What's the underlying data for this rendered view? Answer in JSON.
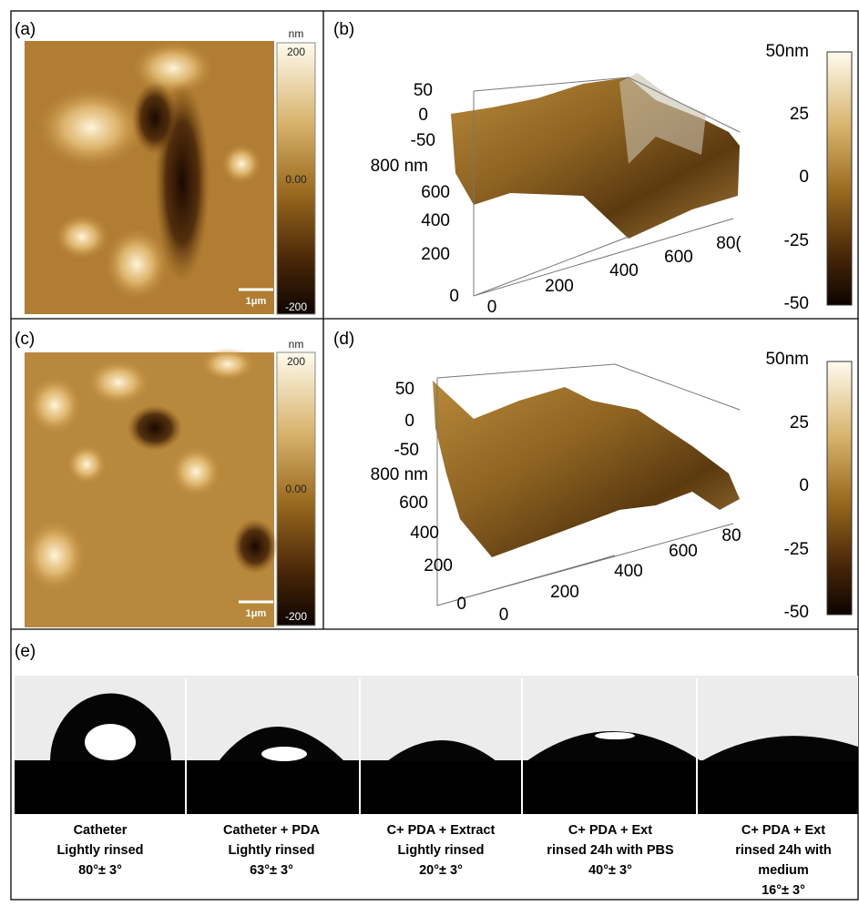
{
  "panels": [
    {
      "label": "(a)",
      "colorbar": {
        "unit": "nm",
        "ticks": [
          "200",
          "0.00",
          "-200"
        ]
      },
      "scale_bar": "1μm"
    },
    {
      "label": "(b)",
      "z_ticks": [
        "50",
        "0",
        "-50"
      ],
      "y_ticks": [
        "800 nm",
        "600",
        "400",
        "200",
        "0"
      ],
      "x_ticks": [
        "0",
        "200",
        "400",
        "600",
        "80("
      ],
      "colorbar": {
        "ticks": [
          "50nm",
          "25",
          "0",
          "-25",
          "-50"
        ]
      }
    },
    {
      "label": "(c)",
      "colorbar": {
        "unit": "nm",
        "ticks": [
          "200",
          "0.00",
          "-200"
        ]
      },
      "scale_bar": "1μm"
    },
    {
      "label": "(d)",
      "z_ticks": [
        "50",
        "0",
        "-50"
      ],
      "y_ticks": [
        "800 nm",
        "600",
        "400",
        "200",
        "0"
      ],
      "x_ticks": [
        "0",
        "200",
        "400",
        "600",
        "80"
      ],
      "colorbar": {
        "ticks": [
          "50nm",
          "25",
          "0",
          "-25",
          "-50"
        ]
      }
    }
  ],
  "contact_angles": {
    "label": "(e)",
    "samples": [
      {
        "lines": [
          "Catheter",
          "Lightly rinsed",
          "80°± 3°"
        ]
      },
      {
        "lines": [
          "Catheter + PDA",
          "Lightly rinsed",
          "63°± 3°"
        ]
      },
      {
        "lines": [
          "C+ PDA + Extract",
          "Lightly rinsed",
          "20°± 3°"
        ]
      },
      {
        "lines": [
          "C+ PDA + Ext",
          "rinsed 24h with PBS",
          "40°± 3°"
        ]
      },
      {
        "lines": [
          "C+ PDA + Ext",
          "rinsed 24h with",
          "medium",
          "16°± 3°"
        ]
      }
    ]
  }
}
